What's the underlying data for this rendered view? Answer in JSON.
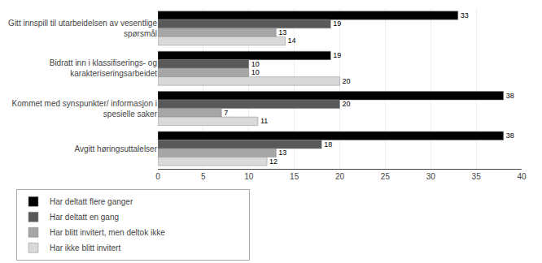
{
  "chart_data": {
    "type": "bar",
    "orientation": "horizontal",
    "categories": [
      "Gitt innspill til utarbeidelsen av vesentlige\nspørsmål",
      "Bidratt inn i klassifiserings- og\nkarakteriseringsarbeidet",
      "Kommet med synspunkter/ informasjon i\nspesielle saker",
      "Avgitt høringsuttalelser"
    ],
    "series": [
      {
        "name": "Har deltatt flere ganger",
        "color": "#000000",
        "values": [
          33,
          19,
          38,
          38
        ]
      },
      {
        "name": "Har deltatt en gang",
        "color": "#595959",
        "values": [
          19,
          10,
          20,
          18
        ]
      },
      {
        "name": "Har blitt invitert, men deltok ikke",
        "color": "#a6a6a6",
        "values": [
          13,
          10,
          7,
          13
        ]
      },
      {
        "name": "Har ikke blitt invitert",
        "color": "#d9d9d9",
        "values": [
          14,
          20,
          11,
          12
        ]
      }
    ],
    "xlim": [
      0,
      40
    ],
    "xticks": [
      0,
      5,
      10,
      15,
      20,
      25,
      30,
      35,
      40
    ],
    "grid": true,
    "legend": "bottom",
    "data_labels": true
  }
}
